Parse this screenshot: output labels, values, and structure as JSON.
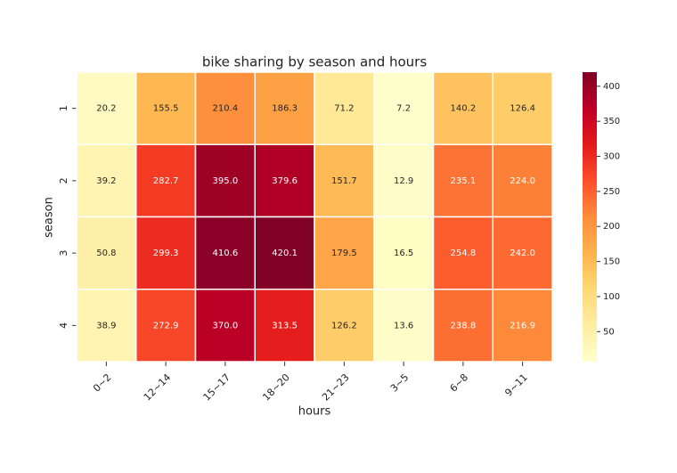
{
  "chart_data": {
    "type": "heatmap",
    "title": "bike sharing by season and hours",
    "x_label": "hours",
    "y_label": "season",
    "categories": [
      "0~2",
      "12~14",
      "15~17",
      "18~20",
      "21~23",
      "3~5",
      "6~8",
      "9~11"
    ],
    "series": [
      {
        "name": "1",
        "values": [
          20.2,
          155.5,
          210.4,
          186.3,
          71.2,
          7.2,
          140.2,
          126.4
        ],
        "value_labels": [
          "20.2",
          "155.5",
          "210.4",
          "186.3",
          "71.2",
          "7.2",
          "140.2",
          "126.4"
        ]
      },
      {
        "name": "2",
        "values": [
          39.2,
          282.7,
          395.0,
          379.6,
          151.7,
          12.9,
          235.1,
          224.0
        ],
        "value_labels": [
          "39.2",
          "282.7",
          "395.0",
          "379.6",
          "151.7",
          "12.9",
          "235.1",
          "224.0"
        ]
      },
      {
        "name": "3",
        "values": [
          50.8,
          299.3,
          410.6,
          420.1,
          179.5,
          16.5,
          254.8,
          242.0
        ],
        "value_labels": [
          "50.8",
          "299.3",
          "410.6",
          "420.1",
          "179.5",
          "16.5",
          "254.8",
          "242.0"
        ]
      },
      {
        "name": "4",
        "values": [
          38.9,
          272.9,
          370.0,
          313.5,
          126.2,
          13.6,
          238.8,
          216.9
        ],
        "value_labels": [
          "38.9",
          "272.9",
          "370.0",
          "313.5",
          "126.2",
          "13.6",
          "238.8",
          "216.9"
        ]
      }
    ],
    "colormap": "YlOrRd",
    "clim": [
      7.2,
      420.1
    ],
    "cticks": [
      50,
      100,
      150,
      200,
      250,
      300,
      350,
      400
    ]
  }
}
